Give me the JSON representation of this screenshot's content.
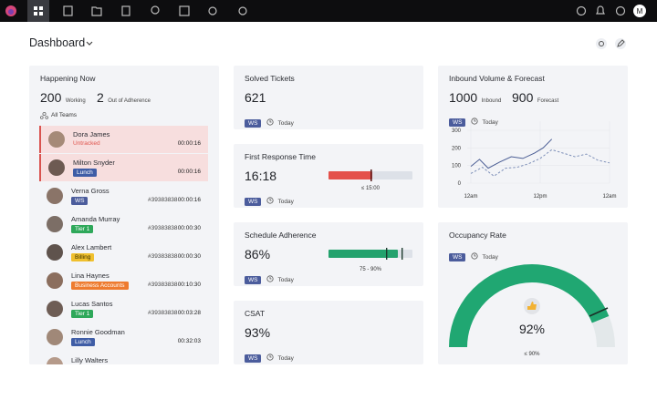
{
  "nav": {
    "avatar": "M"
  },
  "header": {
    "title": "Dashboard"
  },
  "happening": {
    "title": "Happening Now",
    "working": 200,
    "working_label": "Working",
    "out": 2,
    "out_label": "Out of Adherence",
    "filter": "All Teams",
    "agents": [
      {
        "name": "Dora James",
        "status": "Untracked",
        "status_color": "#e0564f",
        "status_style": "text",
        "time": "00:00:16",
        "alert": true
      },
      {
        "name": "Milton Snyder",
        "status": "Lunch",
        "status_color": "#3f5da6",
        "time": "00:00:16",
        "alert": true
      },
      {
        "name": "Verna Gross",
        "status": "WS",
        "status_color": "#4b5c9c",
        "id": "#39383838",
        "time": "00:00:16"
      },
      {
        "name": "Amanda Murray",
        "status": "Tier 1",
        "status_color": "#2ea85a",
        "id": "#39383838",
        "time": "00:00:30"
      },
      {
        "name": "Alex Lambert",
        "status": "Billing",
        "status_color": "#f0c02e",
        "id": "#39383838",
        "time": "00:00:30"
      },
      {
        "name": "Lina Haynes",
        "status": "Business Accounts",
        "status_color": "#ee7b2f",
        "id": "#39383838",
        "time": "00:10:30"
      },
      {
        "name": "Lucas Santos",
        "status": "Tier 1",
        "status_color": "#2ea85a",
        "id": "#39383838",
        "time": "00:03:28"
      },
      {
        "name": "Ronnie Goodman",
        "status": "Lunch",
        "status_color": "#3f5da6",
        "time": "00:32:03"
      },
      {
        "name": "Lilly Walters"
      }
    ]
  },
  "tickets": {
    "title": "Solved Tickets",
    "value": 621,
    "tag": "WS",
    "period": "Today"
  },
  "response": {
    "title": "First Response Time",
    "value": "16:18",
    "tag": "WS",
    "period": "Today",
    "target": "≤ 15:00"
  },
  "schedule": {
    "title": "Schedule Adherence",
    "value": "86%",
    "tag": "WS",
    "period": "Today",
    "range": "75 - 90%"
  },
  "csat": {
    "title": "CSAT",
    "value": "93%",
    "tag": "WS",
    "period": "Today"
  },
  "inbound": {
    "title": "Inbound Volume & Forecast",
    "inbound": 1000,
    "inbound_label": "Inbound",
    "forecast": 900,
    "forecast_label": "Forecast",
    "tag": "WS",
    "period": "Today",
    "chart": {
      "type": "line",
      "xlim": [
        0,
        24
      ],
      "xticks": [
        {
          "value": 0,
          "label": "12am"
        },
        {
          "value": 12,
          "label": "12pm"
        },
        {
          "value": 24,
          "label": "12am"
        }
      ],
      "ylim": [
        0,
        300
      ],
      "yticks": [
        0,
        100,
        200,
        300
      ],
      "series": [
        {
          "color": "#4a5d94",
          "dash": false,
          "x": [
            0,
            1.5,
            3,
            5,
            7,
            9,
            11,
            12.5,
            14
          ],
          "values": [
            95,
            135,
            85,
            120,
            150,
            140,
            170,
            200,
            250
          ]
        },
        {
          "color": "#7d8fb8",
          "dash": true,
          "x": [
            0,
            2,
            4,
            6,
            8,
            10,
            12,
            14,
            16,
            18,
            20,
            22,
            24
          ],
          "values": [
            55,
            90,
            40,
            85,
            90,
            110,
            140,
            190,
            170,
            150,
            165,
            130,
            115
          ]
        }
      ]
    }
  },
  "occupancy": {
    "title": "Occupancy Rate",
    "tag": "WS",
    "period": "Today",
    "value": "92%",
    "target": "≤ 90%"
  }
}
